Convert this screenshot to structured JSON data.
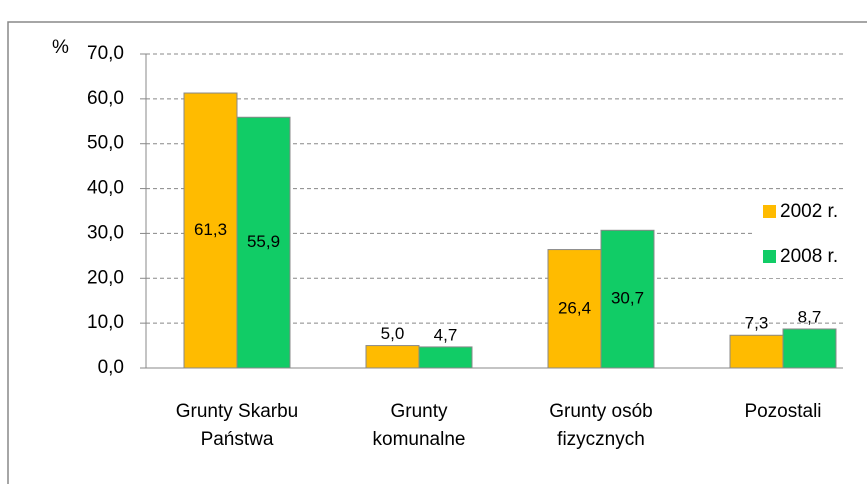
{
  "chart_data": {
    "type": "bar",
    "y_label": "%",
    "categories": [
      "Grunty Skarbu\nPaństwa",
      "Grunty\nkomunalne",
      "Grunty osób\nfizycznych",
      "Pozostali"
    ],
    "series": [
      {
        "name": "2002 r.",
        "color": "#ffbb00",
        "values": [
          61.3,
          5.0,
          26.4,
          7.3
        ],
        "value_labels": [
          "61,3",
          "5,0",
          "26,4",
          "7,3"
        ]
      },
      {
        "name": "2008 r.",
        "color": "#11cc66",
        "values": [
          55.9,
          4.7,
          30.7,
          8.7
        ],
        "value_labels": [
          "55,9",
          "4,7",
          "30,7",
          "8,7"
        ]
      }
    ],
    "ylim": [
      0,
      70
    ],
    "yticks": [
      {
        "value": 0,
        "label": "0,0"
      },
      {
        "value": 10,
        "label": "10,0"
      },
      {
        "value": 20,
        "label": "20,0"
      },
      {
        "value": 30,
        "label": "30,0"
      },
      {
        "value": 40,
        "label": "40,0"
      },
      {
        "value": 50,
        "label": "50,0"
      },
      {
        "value": 60,
        "label": "60,0"
      },
      {
        "value": 70,
        "label": "70,0"
      }
    ],
    "grid": true,
    "legend": "right"
  }
}
